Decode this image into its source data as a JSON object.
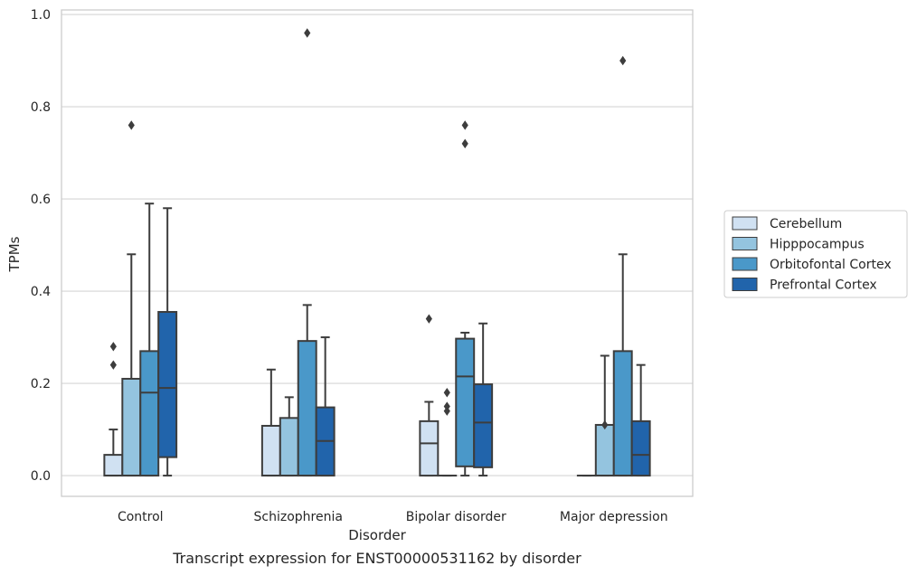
{
  "chart_data": {
    "type": "box",
    "title": "",
    "caption": "Transcript expression for ENST00000531162 by disorder",
    "xlabel": "Disorder",
    "ylabel": "TPMs",
    "ylim": [
      -0.045,
      1.01
    ],
    "yticks": [
      0.0,
      0.2,
      0.4,
      0.6,
      0.8,
      1.0
    ],
    "ytick_labels": [
      "0.0",
      "0.2",
      "0.4",
      "0.6",
      "0.8",
      "1.0"
    ],
    "categories": [
      "Control",
      "Schizophrenia",
      "Bipolar disorder",
      "Major depression"
    ],
    "grid": "horizontal",
    "legend_position": "right",
    "series": [
      {
        "name": "Cerebellum",
        "color": "#d0e1f2",
        "boxes": [
          {
            "q1": 0.0,
            "median": 0.0,
            "q3": 0.045,
            "whisker_low": 0.0,
            "whisker_high": 0.1,
            "outliers": [
              0.24,
              0.28
            ]
          },
          {
            "q1": 0.0,
            "median": 0.0,
            "q3": 0.108,
            "whisker_low": 0.0,
            "whisker_high": 0.23,
            "outliers": []
          },
          {
            "q1": 0.0,
            "median": 0.07,
            "q3": 0.118,
            "whisker_low": 0.0,
            "whisker_high": 0.16,
            "outliers": [
              0.34
            ]
          },
          {
            "q1": 0.0,
            "median": 0.0,
            "q3": 0.0,
            "whisker_low": 0.0,
            "whisker_high": 0.0,
            "outliers": []
          }
        ]
      },
      {
        "name": "Hipppocampus",
        "color": "#94c4df",
        "boxes": [
          {
            "q1": 0.0,
            "median": 0.0,
            "q3": 0.21,
            "whisker_low": 0.0,
            "whisker_high": 0.48,
            "outliers": [
              0.76
            ]
          },
          {
            "q1": 0.0,
            "median": 0.0,
            "q3": 0.125,
            "whisker_low": 0.0,
            "whisker_high": 0.17,
            "outliers": []
          },
          {
            "q1": 0.0,
            "median": 0.0,
            "q3": 0.0,
            "whisker_low": 0.0,
            "whisker_high": 0.0,
            "outliers": [
              0.14,
              0.15,
              0.18
            ]
          },
          {
            "q1": 0.0,
            "median": 0.0,
            "q3": 0.11,
            "whisker_low": 0.0,
            "whisker_high": 0.26,
            "outliers": [
              0.11
            ]
          }
        ]
      },
      {
        "name": "Orbitofontal Cortex",
        "color": "#4a98c9",
        "boxes": [
          {
            "q1": 0.0,
            "median": 0.18,
            "q3": 0.27,
            "whisker_low": 0.0,
            "whisker_high": 0.59,
            "outliers": []
          },
          {
            "q1": 0.0,
            "median": 0.0,
            "q3": 0.292,
            "whisker_low": 0.0,
            "whisker_high": 0.37,
            "outliers": [
              0.96
            ]
          },
          {
            "q1": 0.02,
            "median": 0.215,
            "q3": 0.297,
            "whisker_low": 0.0,
            "whisker_high": 0.31,
            "outliers": [
              0.72,
              0.76
            ]
          },
          {
            "q1": 0.0,
            "median": 0.0,
            "q3": 0.27,
            "whisker_low": 0.0,
            "whisker_high": 0.48,
            "outliers": [
              0.9
            ]
          }
        ]
      },
      {
        "name": "Prefrontal Cortex",
        "color": "#2164ab",
        "boxes": [
          {
            "q1": 0.04,
            "median": 0.19,
            "q3": 0.355,
            "whisker_low": 0.0,
            "whisker_high": 0.58,
            "outliers": []
          },
          {
            "q1": 0.0,
            "median": 0.075,
            "q3": 0.148,
            "whisker_low": 0.0,
            "whisker_high": 0.3,
            "outliers": []
          },
          {
            "q1": 0.018,
            "median": 0.115,
            "q3": 0.198,
            "whisker_low": 0.0,
            "whisker_high": 0.33,
            "outliers": []
          },
          {
            "q1": 0.0,
            "median": 0.045,
            "q3": 0.118,
            "whisker_low": 0.0,
            "whisker_high": 0.24,
            "outliers": []
          }
        ]
      }
    ]
  }
}
